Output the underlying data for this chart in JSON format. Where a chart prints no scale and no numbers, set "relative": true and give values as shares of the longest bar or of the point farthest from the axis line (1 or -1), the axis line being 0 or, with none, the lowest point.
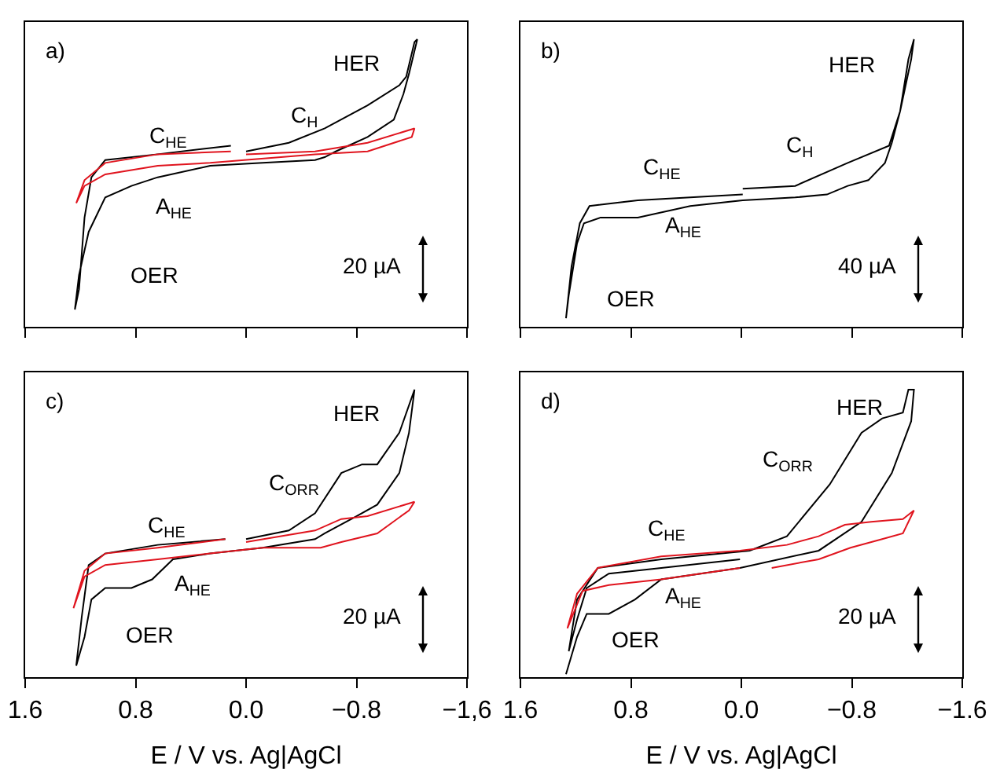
{
  "chart_data": [
    {
      "type": "line",
      "relative": true,
      "tick_labels": false,
      "xlim": [
        1.6,
        -1.6
      ],
      "xticks": [
        {
          "value": 1.6,
          "label": null
        },
        {
          "value": 0.8,
          "label": null
        },
        {
          "value": 0,
          "label": null
        },
        {
          "value": -0.8,
          "label": null
        },
        {
          "value": -1.6,
          "label": null
        }
      ],
      "series": [
        {
          "color": "#000000",
          "x": [
            0.0,
            -0.31,
            -0.57,
            -0.88,
            -1.11,
            -1.16,
            -1.22,
            -1.24,
            -1.18,
            -1.14,
            -1.07,
            -0.88,
            -0.65,
            -0.57,
            -0.5,
            -0.12,
            0.26,
            0.64,
            0.83,
            1.02,
            1.14,
            1.21,
            1.24,
            1.21,
            1.17,
            1.12,
            1.02,
            0.64,
            0.11
          ],
          "values": [
            0.61,
            0.64,
            0.69,
            0.77,
            0.84,
            0.87,
            0.99,
            1.0,
            0.88,
            0.81,
            0.72,
            0.66,
            0.61,
            0.59,
            0.58,
            0.57,
            0.56,
            0.52,
            0.49,
            0.45,
            0.33,
            0.18,
            0.06,
            0.13,
            0.38,
            0.52,
            0.58,
            0.6,
            0.63
          ]
        },
        {
          "color": "#e0141e",
          "x": [
            0.0,
            -0.5,
            -0.88,
            -1.22,
            -1.2,
            -0.88,
            -0.5,
            0.26,
            0.64,
            1.02,
            1.17,
            1.23,
            1.17,
            1.02,
            0.64,
            0.11
          ],
          "values": [
            0.6,
            0.61,
            0.64,
            0.69,
            0.66,
            0.61,
            0.6,
            0.57,
            0.56,
            0.53,
            0.49,
            0.43,
            0.51,
            0.57,
            0.6,
            0.61
          ]
        }
      ],
      "annotations": [
        "a)",
        "20 µA",
        "HER",
        "C$_{H}$",
        "C$_{HE}$",
        "A$_{HE}$",
        "OER"
      ]
    },
    {
      "type": "line",
      "relative": true,
      "tick_labels": false,
      "xlim": [
        1.6,
        -1.6
      ],
      "xticks": [
        {
          "value": 1.6,
          "label": null
        },
        {
          "value": 0.8,
          "label": null
        },
        {
          "value": 0,
          "label": null
        },
        {
          "value": -0.8,
          "label": null
        },
        {
          "value": -1.6,
          "label": null
        }
      ],
      "series": [
        {
          "color": "#000000",
          "x": [
            -0.01,
            -0.39,
            -0.77,
            -1.07,
            -1.15,
            -1.21,
            -1.25,
            -1.23,
            -1.15,
            -1.09,
            -1.04,
            -0.92,
            -0.77,
            -0.62,
            -0.39,
            -0.01,
            0.37,
            0.75,
            1.02,
            1.14,
            1.19,
            1.25,
            1.27,
            1.23,
            1.17,
            1.1,
            0.75,
            -0.01
          ],
          "values": [
            0.48,
            0.49,
            0.57,
            0.63,
            0.75,
            0.93,
            1.0,
            0.93,
            0.75,
            0.64,
            0.57,
            0.51,
            0.49,
            0.46,
            0.45,
            0.44,
            0.42,
            0.38,
            0.38,
            0.36,
            0.29,
            0.11,
            0.03,
            0.21,
            0.36,
            0.42,
            0.44,
            0.46
          ]
        }
      ],
      "annotations": [
        "b)",
        "40 µA",
        "HER",
        "C$_{H}$",
        "C$_{HE}$",
        "A$_{HE}$",
        "OER"
      ]
    },
    {
      "type": "line",
      "relative": true,
      "tick_labels": "x",
      "xlabel": "E / V vs. Ag|AgCl",
      "xlim": [
        1.6,
        -1.6
      ],
      "xticks": [
        {
          "value": 1.6,
          "label": "1.6"
        },
        {
          "value": 0.8,
          "label": "0.8"
        },
        {
          "value": 0,
          "label": "0.0"
        },
        {
          "value": -0.8,
          "label": "−0.8"
        },
        {
          "value": -1.6,
          "label": "−1,6"
        }
      ],
      "series": [
        {
          "color": "#000000",
          "x": [
            0.0,
            -0.31,
            -0.5,
            -0.69,
            -0.84,
            -0.95,
            -1.11,
            -1.22,
            -1.18,
            -1.11,
            -0.95,
            -0.8,
            -0.57,
            -0.5,
            -0.12,
            0.26,
            0.53,
            0.68,
            0.83,
            1.02,
            1.12,
            1.17,
            1.23,
            1.19,
            1.14,
            1.02,
            0.64,
            0.15
          ],
          "values": [
            0.48,
            0.51,
            0.57,
            0.71,
            0.74,
            0.74,
            0.85,
            1.0,
            0.85,
            0.71,
            0.6,
            0.56,
            0.5,
            0.48,
            0.45,
            0.43,
            0.41,
            0.34,
            0.31,
            0.31,
            0.27,
            0.14,
            0.04,
            0.21,
            0.39,
            0.43,
            0.46,
            0.48
          ]
        },
        {
          "color": "#e0141e",
          "x": [
            0.0,
            -0.5,
            -0.69,
            -0.88,
            -1.22,
            -1.18,
            -0.95,
            -0.69,
            -0.54,
            -0.12,
            0.26,
            0.64,
            1.02,
            1.17,
            1.25,
            1.17,
            1.02,
            0.64,
            0.15
          ],
          "values": [
            0.47,
            0.51,
            0.55,
            0.56,
            0.61,
            0.58,
            0.5,
            0.47,
            0.45,
            0.45,
            0.43,
            0.41,
            0.39,
            0.35,
            0.24,
            0.37,
            0.43,
            0.45,
            0.48
          ]
        }
      ],
      "annotations": [
        "c)",
        "20 µA",
        "HER",
        "C$_{ORR}$",
        "C$_{HE}$",
        "A$_{HE}$",
        "OER"
      ]
    },
    {
      "type": "line",
      "relative": true,
      "tick_labels": "x",
      "xlabel": "E / V vs. Ag|AgCl",
      "xlim": [
        1.6,
        -1.6
      ],
      "xticks": [
        {
          "value": 1.6,
          "label": "1.6"
        },
        {
          "value": 0.8,
          "label": "0.8"
        },
        {
          "value": 0,
          "label": "0.0"
        },
        {
          "value": -0.8,
          "label": "−0.8"
        },
        {
          "value": -1.6,
          "label": "−1.6"
        }
      ],
      "series": [
        {
          "color": "#000000",
          "x": [
            0.01,
            0.58,
            0.96,
            1.12,
            1.19,
            1.25,
            1.19,
            1.04,
            0.58,
            -0.06,
            -0.33,
            -0.64,
            -0.87,
            -1.02,
            -1.17,
            -1.21,
            -1.25,
            -1.23,
            -1.09,
            -0.87,
            -0.56,
            0.01,
            0.58,
            0.77,
            0.96,
            1.12,
            1.19,
            1.27
          ],
          "values": [
            0.41,
            0.38,
            0.36,
            0.31,
            0.2,
            0.09,
            0.27,
            0.38,
            0.41,
            0.44,
            0.49,
            0.67,
            0.85,
            0.9,
            0.92,
            1.0,
            1.0,
            0.89,
            0.71,
            0.54,
            0.44,
            0.38,
            0.34,
            0.27,
            0.22,
            0.22,
            0.14,
            0.01
          ]
        },
        {
          "color": "#e0141e",
          "x": [
            -0.22,
            -0.56,
            -0.79,
            -1.02,
            -1.17,
            -1.25,
            -1.17,
            -0.94,
            -0.75,
            -0.56,
            -0.33,
            0.01,
            0.58,
            1.04,
            1.19,
            1.26,
            1.15,
            0.96,
            0.58,
            0.01
          ],
          "values": [
            0.38,
            0.41,
            0.45,
            0.48,
            0.5,
            0.58,
            0.55,
            0.54,
            0.53,
            0.49,
            0.46,
            0.44,
            0.42,
            0.38,
            0.29,
            0.17,
            0.3,
            0.32,
            0.34,
            0.38
          ]
        }
      ],
      "annotations": [
        "d)",
        "20 µA",
        "HER",
        "C$_{ORR}$",
        "C$_{HE}$",
        "A$_{HE}$",
        "OER"
      ]
    }
  ]
}
